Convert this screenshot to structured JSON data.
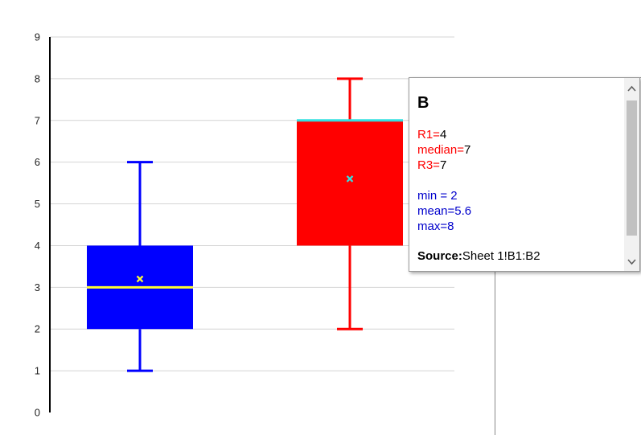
{
  "chart_data": {
    "type": "boxplot",
    "ylim": [
      0,
      9
    ],
    "yticks": [
      "0",
      "1",
      "2",
      "3",
      "4",
      "5",
      "6",
      "7",
      "8",
      "9"
    ],
    "grid": true,
    "series": [
      {
        "name": "",
        "min": 1,
        "q1": 2,
        "median": 3,
        "q3": 4,
        "max": 6,
        "mean": 3.2,
        "box_color": "#0000ff",
        "median_color": "#ffff33",
        "whisker_color": "#0000ff",
        "mean_marker_color": "#ffff33"
      },
      {
        "name": "B",
        "min": 2,
        "q1": 4,
        "median": 7,
        "q3": 7,
        "max": 8,
        "mean": 5.6,
        "box_color": "#ff0000",
        "median_color": "#33e0e0",
        "whisker_color": "#ff0000",
        "mean_marker_color": "#33e0e0"
      }
    ]
  },
  "tooltip": {
    "title": "B",
    "r1_key": "R1=",
    "r1_val": "4",
    "median_key": "median=",
    "median_val": "7",
    "r3_key": "R3=",
    "r3_val": "7",
    "min_text": "min = 2",
    "mean_text": "mean=5.6",
    "max_text": "max=8",
    "source_label": "Source:",
    "source_value": "Sheet 1!B1:B2"
  },
  "icons": {
    "scroll_up": "chevron-up-icon",
    "scroll_down": "chevron-down-icon"
  }
}
